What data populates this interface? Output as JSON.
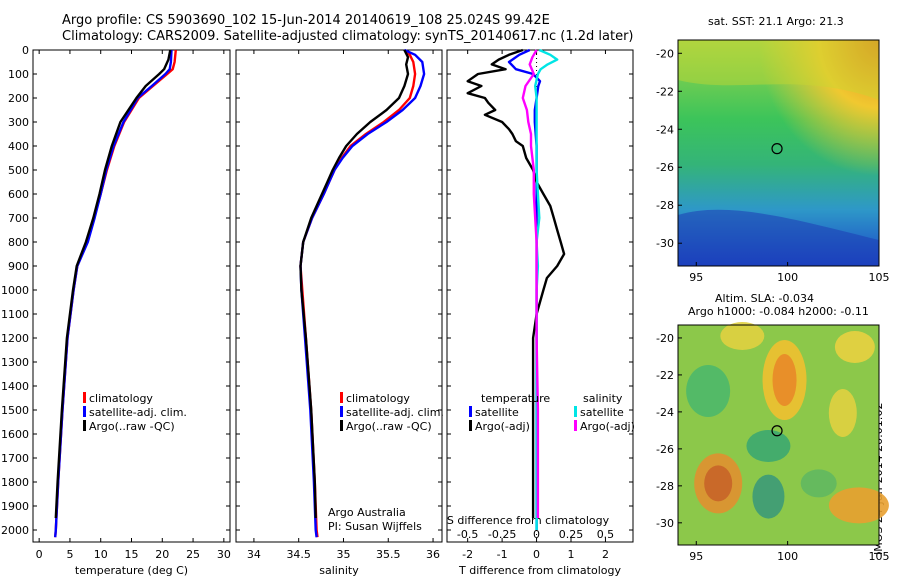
{
  "header": {
    "line1": "Argo profile: CS 5903690_102 15-Jun-2014 20140619_108 25.024S 99.42E",
    "line2": "Climatology: CARS2009. Satellite-adjusted climatology: synTS_20140617.nc (1.2d later)"
  },
  "colors": {
    "climatology": "#ff0000",
    "satellite": "#0000ff",
    "argo": "#000000",
    "t_satellite": "#0000ff",
    "t_argo": "#000000",
    "s_satellite": "#00e5e5",
    "s_argo": "#ff00ff"
  },
  "maps": {
    "sst_title": "sat. SST: 21.1  Argo: 21.3",
    "sla_title1": "Altim. SLA: -0.034",
    "sla_title2": "Argo h1000: -0.084  h2000: -0.11",
    "y_ticks": [
      "-20",
      "-22",
      "-24",
      "-26",
      "-28",
      "-30"
    ],
    "x_ticks": [
      "95",
      "100",
      "105"
    ]
  },
  "stamp": "IMOS 24-Jun-2014 20:01:02",
  "notes": {
    "line1": "Argo Australia",
    "line2": "PI: Susan Wijffels"
  },
  "chart_data": [
    {
      "type": "line",
      "id": "temperature",
      "xlabel": "temperature (deg C)",
      "ylabel": "",
      "xlim": [
        -1,
        31
      ],
      "ylim": [
        2050,
        0
      ],
      "x_ticks": [
        "0",
        "5",
        "10",
        "15",
        "20",
        "25",
        "30"
      ],
      "x_tick_values": [
        0,
        5,
        10,
        15,
        20,
        25,
        30
      ],
      "y_ticks": [
        "0",
        "100",
        "200",
        "300",
        "400",
        "500",
        "600",
        "700",
        "800",
        "900",
        "1000",
        "1100",
        "1200",
        "1300",
        "1400",
        "1500",
        "1600",
        "1700",
        "1800",
        "1900",
        "2000"
      ],
      "y_tick_values": [
        0,
        100,
        200,
        300,
        400,
        500,
        600,
        700,
        800,
        900,
        1000,
        1100,
        1200,
        1300,
        1400,
        1500,
        1600,
        1700,
        1800,
        1900,
        2000
      ],
      "legend": [
        "climatology",
        "satellite-adj. clim.",
        "Argo(..raw -QC)"
      ],
      "series": [
        {
          "name": "climatology",
          "color": "#ff0000",
          "depth": [
            0,
            50,
            80,
            100,
            150,
            200,
            300,
            400,
            500,
            600,
            700,
            800,
            900,
            1000,
            1200,
            1500,
            1800,
            2000,
            2030
          ],
          "values": [
            22.2,
            22.0,
            21.7,
            20.8,
            18.5,
            16.2,
            13.8,
            12.2,
            11.0,
            10.0,
            8.9,
            7.8,
            6.2,
            5.6,
            4.6,
            3.8,
            3.1,
            2.7,
            2.6
          ]
        },
        {
          "name": "satellite-adj. clim.",
          "color": "#0000ff",
          "depth": [
            0,
            50,
            80,
            100,
            150,
            200,
            300,
            400,
            500,
            600,
            700,
            800,
            900,
            1000,
            1200,
            1500,
            1800,
            2000,
            2030
          ],
          "values": [
            21.5,
            21.4,
            21.2,
            20.5,
            18.3,
            16.0,
            13.7,
            12.1,
            10.9,
            10.0,
            9.0,
            7.9,
            6.2,
            5.6,
            4.6,
            3.8,
            3.1,
            2.7,
            2.6
          ]
        },
        {
          "name": "Argo(..raw -QC)",
          "color": "#000000",
          "depth": [
            0,
            40,
            80,
            100,
            150,
            200,
            250,
            300,
            400,
            500,
            600,
            700,
            800,
            900,
            1000,
            1200,
            1500,
            1800,
            1950
          ],
          "values": [
            21.3,
            21.0,
            20.3,
            19.5,
            17.3,
            15.8,
            14.5,
            13.2,
            11.8,
            10.7,
            9.8,
            8.8,
            7.6,
            6.1,
            5.5,
            4.5,
            3.7,
            3.0,
            2.7
          ]
        }
      ]
    },
    {
      "type": "line",
      "id": "salinity",
      "xlabel": "salinity",
      "ylabel": "",
      "xlim": [
        33.8,
        36.1
      ],
      "ylim": [
        2050,
        0
      ],
      "x_ticks": [
        "34",
        "34.5",
        "35",
        "35.5",
        "36"
      ],
      "x_tick_values": [
        34,
        34.5,
        35,
        35.5,
        36
      ],
      "legend": [
        "climatology",
        "satellite-adj. clim.",
        "Argo(..raw -QC)"
      ],
      "series": [
        {
          "name": "climatology",
          "color": "#ff0000",
          "depth": [
            0,
            20,
            50,
            100,
            150,
            200,
            250,
            300,
            350,
            400,
            450,
            500,
            550,
            600,
            700,
            800,
            900,
            1000,
            1200,
            1500,
            1800,
            2000,
            2030
          ],
          "values": [
            35.68,
            35.74,
            35.78,
            35.8,
            35.78,
            35.74,
            35.62,
            35.45,
            35.25,
            35.08,
            34.98,
            34.9,
            34.84,
            34.78,
            34.65,
            34.55,
            34.52,
            34.54,
            34.58,
            34.64,
            34.68,
            34.7,
            34.71
          ]
        },
        {
          "name": "satellite-adj. clim.",
          "color": "#0000ff",
          "depth": [
            0,
            20,
            50,
            100,
            150,
            200,
            250,
            300,
            350,
            400,
            450,
            500,
            550,
            600,
            700,
            800,
            900,
            1000,
            1200,
            1500,
            1800,
            2000,
            2030
          ],
          "values": [
            35.68,
            35.8,
            35.88,
            35.9,
            35.86,
            35.8,
            35.66,
            35.48,
            35.27,
            35.1,
            34.99,
            34.9,
            34.84,
            34.78,
            34.65,
            34.55,
            34.52,
            34.53,
            34.57,
            34.63,
            34.67,
            34.69,
            34.7
          ]
        },
        {
          "name": "Argo(..raw -QC)",
          "color": "#000000",
          "depth": [
            0,
            30,
            60,
            100,
            150,
            200,
            250,
            300,
            350,
            400,
            450,
            500,
            550,
            600,
            700,
            800,
            900,
            1000,
            1200,
            1500,
            1800,
            1950
          ],
          "values": [
            35.68,
            35.72,
            35.7,
            35.72,
            35.68,
            35.62,
            35.48,
            35.3,
            35.15,
            35.03,
            34.95,
            34.88,
            34.82,
            34.76,
            34.64,
            34.55,
            34.52,
            34.53,
            34.58,
            34.64,
            34.68,
            34.69
          ]
        }
      ]
    },
    {
      "type": "line",
      "id": "difference",
      "xlabel": "T difference from climatology",
      "xlabel_top": "S difference from climatology",
      "xlim": [
        -2.6,
        2.8
      ],
      "ylim": [
        2050,
        0
      ],
      "x_ticks": [
        "-2",
        "-1",
        "0",
        "1",
        "2"
      ],
      "x_tick_values": [
        -2,
        -1,
        0,
        1,
        2
      ],
      "s_ticks": [
        "-0.5",
        "-0.25",
        "0",
        "0.25",
        "0.5"
      ],
      "s_tick_values": [
        -0.5,
        -0.25,
        0,
        0.25,
        0.5
      ],
      "s_scale": 4,
      "legend_t_title": "temperature",
      "legend_s_title": "salinity",
      "legend_t": [
        "satellite",
        "Argo(-adj)"
      ],
      "legend_s": [
        "satellite",
        "Argo(-adj)"
      ],
      "series": [
        {
          "name": "satellite",
          "color": "#0000ff",
          "kind": "T",
          "depth": [
            0,
            20,
            50,
            80,
            100,
            130,
            150,
            200,
            250,
            300,
            400,
            500,
            600,
            700,
            800,
            900,
            1000,
            1200,
            1500,
            1800,
            2000
          ],
          "values": [
            -0.2,
            -0.5,
            -0.8,
            -0.6,
            -0.1,
            0.1,
            0.05,
            0.0,
            -0.05,
            -0.05,
            0.0,
            0.0,
            0.0,
            0.0,
            0.0,
            0.0,
            0.0,
            0.0,
            0.0,
            0.0,
            0.0
          ]
        },
        {
          "name": "Argo(-adj)",
          "color": "#000000",
          "kind": "T",
          "depth": [
            0,
            20,
            40,
            60,
            80,
            100,
            130,
            150,
            180,
            200,
            220,
            250,
            270,
            300,
            330,
            350,
            380,
            400,
            450,
            500,
            550,
            600,
            650,
            700,
            750,
            800,
            850,
            900,
            950,
            1000,
            1100,
            1200,
            1400,
            1600,
            1800,
            1950
          ],
          "values": [
            -0.4,
            -0.8,
            -1.1,
            -1.3,
            -0.9,
            -1.7,
            -2.0,
            -1.6,
            -2.0,
            -1.5,
            -1.4,
            -1.2,
            -1.5,
            -1.0,
            -0.8,
            -0.7,
            -0.6,
            -0.4,
            -0.3,
            -0.1,
            0.0,
            0.2,
            0.4,
            0.5,
            0.6,
            0.7,
            0.8,
            0.6,
            0.3,
            0.2,
            0.0,
            -0.1,
            -0.1,
            -0.1,
            -0.1,
            -0.1
          ]
        },
        {
          "name": "satellite",
          "color": "#00e5e5",
          "kind": "S",
          "depth": [
            0,
            20,
            40,
            60,
            80,
            100,
            150,
            200,
            300,
            400,
            500,
            600,
            700,
            800,
            900,
            1000,
            1200,
            1500,
            1800,
            2000
          ],
          "values": [
            0.02,
            0.1,
            0.15,
            0.08,
            0.03,
            0.01,
            -0.01,
            0.0,
            0.0,
            0.0,
            0.0,
            0.01,
            0.02,
            0.0,
            0.01,
            0.0,
            0.0,
            0.0,
            0.0,
            0.0
          ]
        },
        {
          "name": "Argo(-adj)",
          "color": "#ff00ff",
          "kind": "S",
          "depth": [
            0,
            30,
            60,
            100,
            150,
            200,
            250,
            300,
            350,
            400,
            450,
            500,
            550,
            600,
            700,
            800,
            900,
            1000,
            1200,
            1500,
            1800,
            1950
          ],
          "values": [
            0.0,
            -0.03,
            -0.05,
            -0.02,
            -0.08,
            -0.1,
            -0.07,
            -0.06,
            -0.04,
            -0.04,
            -0.03,
            -0.02,
            -0.02,
            -0.02,
            -0.01,
            0.0,
            0.0,
            0.0,
            0.0,
            0.01,
            0.01,
            0.01
          ]
        }
      ]
    }
  ]
}
